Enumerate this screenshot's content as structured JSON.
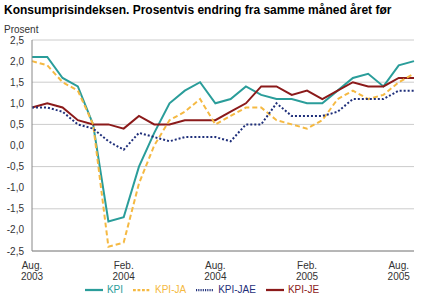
{
  "chart_data": {
    "type": "line",
    "title": "Konsumprisindeksen. Prosentvis endring fra samme måned året før",
    "y_label": "Prosent",
    "categories": [
      "Aug. 2003",
      null,
      null,
      null,
      null,
      null,
      "Feb. 2004",
      null,
      null,
      null,
      null,
      null,
      "Aug. 2004",
      null,
      null,
      null,
      null,
      null,
      "Feb. 2005",
      null,
      null,
      null,
      null,
      null,
      "Aug. 2005",
      null
    ],
    "series": [
      {
        "name": "KPI",
        "color": "#2a9d9a",
        "line_style": "solid",
        "values": [
          2.1,
          2.1,
          1.6,
          1.4,
          0.5,
          -1.8,
          -1.7,
          -0.5,
          0.3,
          1.0,
          1.3,
          1.5,
          1.0,
          1.1,
          1.4,
          1.2,
          1.1,
          1.1,
          1.0,
          1.0,
          1.3,
          1.6,
          1.7,
          1.4,
          1.9,
          2.0
        ]
      },
      {
        "name": "KPI-JE",
        "color": "#8b1a1a",
        "line_style": "solid",
        "values": [
          0.9,
          1.0,
          0.9,
          0.6,
          0.5,
          0.5,
          0.4,
          0.7,
          0.5,
          0.5,
          0.6,
          0.6,
          0.6,
          0.8,
          1.0,
          1.4,
          1.4,
          1.2,
          1.3,
          1.1,
          1.3,
          1.5,
          1.4,
          1.4,
          1.6,
          1.6
        ]
      },
      {
        "name": "KPI-JA",
        "color": "#f5b942",
        "line_style": "dashed",
        "values": [
          2.0,
          1.9,
          1.5,
          1.3,
          0.5,
          -2.4,
          -2.3,
          -0.9,
          0.0,
          0.6,
          0.8,
          1.1,
          0.5,
          0.7,
          0.9,
          0.9,
          0.6,
          0.5,
          0.4,
          0.6,
          1.1,
          1.3,
          1.1,
          1.2,
          1.5,
          1.7
        ]
      },
      {
        "name": "KPI-JAE",
        "color": "#1f2f7a",
        "line_style": "dotted",
        "values": [
          0.9,
          0.9,
          0.8,
          0.5,
          0.4,
          0.1,
          -0.1,
          0.3,
          0.2,
          0.1,
          0.2,
          0.2,
          0.2,
          0.1,
          0.5,
          0.5,
          1.0,
          0.7,
          0.7,
          0.7,
          0.8,
          1.1,
          1.1,
          1.1,
          1.3,
          1.3
        ]
      }
    ],
    "ylim": [
      -2.5,
      2.5
    ],
    "yticks": [
      {
        "value": -2.5,
        "label": "-2,5"
      },
      {
        "value": -2.0,
        "label": "-2,0"
      },
      {
        "value": -1.5,
        "label": "-1,5"
      },
      {
        "value": -1.0,
        "label": "-1,0"
      },
      {
        "value": -0.5,
        "label": "-0,5"
      },
      {
        "value": 0,
        "label": "0,0"
      },
      {
        "value": 0.5,
        "label": "0,5"
      },
      {
        "value": 1.0,
        "label": "1,0"
      },
      {
        "value": 1.5,
        "label": "1,5"
      },
      {
        "value": 2.0,
        "label": "2,0"
      },
      {
        "value": 2.5,
        "label": "2,5"
      }
    ],
    "grid": true,
    "legend": "bottom"
  }
}
